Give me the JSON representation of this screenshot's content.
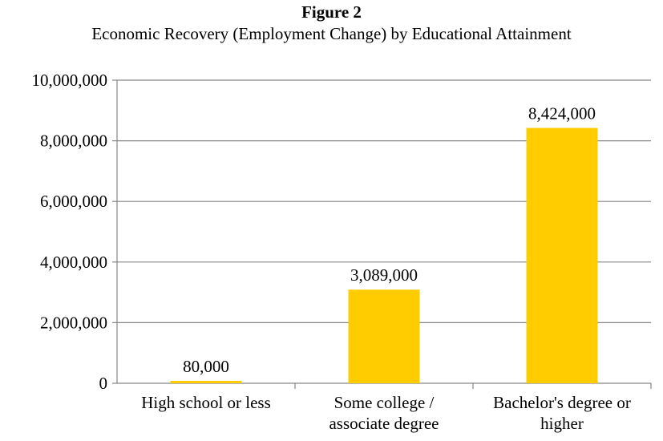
{
  "figure_label": "Figure 2",
  "chart_data": {
    "type": "bar",
    "title": "Economic Recovery (Employment Change) by Educational Attainment",
    "categories": [
      [
        "High school or less"
      ],
      [
        "Some college /",
        "associate degree"
      ],
      [
        "Bachelor's degree or",
        "higher"
      ]
    ],
    "values": [
      80000,
      3089000,
      8424000
    ],
    "data_labels": [
      "80,000",
      "3,089,000",
      "8,424,000"
    ],
    "ylim": [
      0,
      10000000
    ],
    "yticks": [
      0,
      2000000,
      4000000,
      6000000,
      8000000,
      10000000
    ],
    "ytick_labels": [
      "0",
      "2,000,000",
      "4,000,000",
      "6,000,000",
      "8,000,000",
      "10,000,000"
    ],
    "grid": true,
    "legend": "none",
    "colors": {
      "bar": "#FFCC00",
      "grid": "#868686",
      "axis": "#868686"
    }
  }
}
